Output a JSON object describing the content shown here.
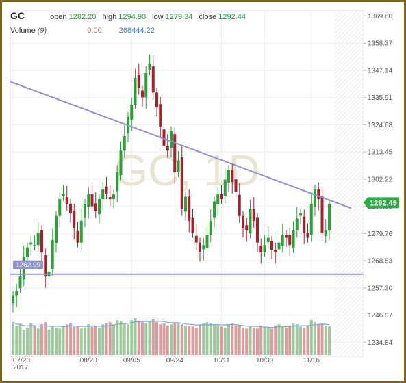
{
  "header": {
    "symbol": "GC",
    "open_label": "open",
    "open": "1282.20",
    "high_label": "high",
    "high": "1294.90",
    "low_label": "low",
    "low": "1279.34",
    "close_label": "close",
    "close": "1292.44",
    "volume_label": "Volume",
    "volume_period": "(9)",
    "volume_value_1": "0.00",
    "volume_value_2": "268444.22"
  },
  "watermark": "GC, 1D",
  "colors": {
    "up": "#2e9e3a",
    "down": "#a2222d",
    "trend": "#8f92c8",
    "vol_up": "#8fbf8f",
    "vol_down": "#d48b8b",
    "vol_ma": "#7aa7d8",
    "frame": "#7a6520"
  },
  "chart_data": {
    "type": "candlestick",
    "y_axis": {
      "min": 1229,
      "max": 1372,
      "ticks": [
        "1369.60",
        "1358.37",
        "1347.14",
        "1335.91",
        "1324.68",
        "1313.45",
        "1302.22",
        "1290.99",
        "1279.76",
        "1268.53",
        "1257.30",
        "1246.07",
        "1234.84"
      ]
    },
    "x_ticks": [
      "07/23",
      "08/20",
      "09/05",
      "09/24",
      "10/11",
      "10/30",
      "11/16"
    ],
    "year_label": "2017",
    "last_price": "1292.49",
    "support_label": "1262.99",
    "support_level": 1262.99,
    "trendline": [
      {
        "date": "07/23",
        "price": 1342.5
      },
      {
        "date": "11/23",
        "price": 1290.2
      }
    ],
    "closes": [
      1254,
      1256,
      1262,
      1270,
      1274,
      1276,
      1275,
      1280,
      1272,
      1262,
      1264,
      1277,
      1287,
      1294,
      1296,
      1292,
      1288,
      1282,
      1276,
      1285,
      1292,
      1296,
      1291,
      1289,
      1294,
      1298,
      1296,
      1294,
      1296,
      1305,
      1314,
      1320,
      1328,
      1333,
      1344,
      1340,
      1336,
      1346,
      1350,
      1338,
      1332,
      1324,
      1316,
      1314,
      1322,
      1305,
      1310,
      1290,
      1295,
      1285,
      1280,
      1276,
      1272,
      1275,
      1279,
      1285,
      1293,
      1296,
      1294,
      1302,
      1306,
      1301,
      1297,
      1287,
      1282,
      1281,
      1290,
      1285,
      1276,
      1272,
      1275,
      1278,
      1273,
      1272,
      1276,
      1279,
      1278,
      1275,
      1281,
      1286,
      1288,
      1280,
      1278,
      1292,
      1298,
      1294,
      1280,
      1281,
      1292
    ],
    "volumes": [
      62,
      55,
      58,
      48,
      52,
      60,
      55,
      50,
      58,
      62,
      48,
      55,
      52,
      50,
      56,
      58,
      60,
      54,
      55,
      50,
      52,
      58,
      54,
      56,
      52,
      58,
      60,
      62,
      58,
      66,
      64,
      60,
      58,
      66,
      70,
      65,
      62,
      60,
      64,
      68,
      62,
      58,
      60,
      56,
      58,
      62,
      60,
      58,
      56,
      55,
      54,
      52,
      58,
      60,
      62,
      60,
      58,
      56,
      54,
      52,
      58,
      60,
      56,
      55,
      52,
      50,
      54,
      52,
      50,
      56,
      54,
      52,
      50,
      56,
      58,
      54,
      52,
      56,
      60,
      58,
      54,
      52,
      56,
      66,
      62,
      58,
      60,
      56,
      54
    ]
  }
}
